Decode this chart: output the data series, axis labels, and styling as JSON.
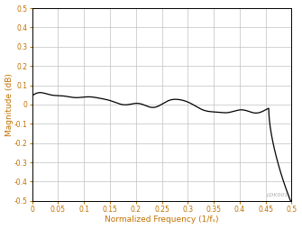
{
  "title": "",
  "xlabel": "Normalized Frequency (1/fₛ)",
  "ylabel": "Magnitude (dB)",
  "xlim": [
    0,
    0.5
  ],
  "ylim": [
    -0.5,
    0.5
  ],
  "yticks": [
    -0.5,
    -0.4,
    -0.3,
    -0.2,
    -0.1,
    0.0,
    0.1,
    0.2,
    0.3,
    0.4,
    0.5
  ],
  "xticks": [
    0,
    0.05,
    0.1,
    0.15,
    0.2,
    0.25,
    0.3,
    0.35,
    0.4,
    0.45,
    0.5
  ],
  "line_color": "#000000",
  "line_width": 0.9,
  "background_color": "#ffffff",
  "grid_color": "#c0c0c0",
  "watermark": "LDK001",
  "xlabel_color": "#c07000",
  "ylabel_color": "#c07000",
  "tick_color": "#c07000"
}
